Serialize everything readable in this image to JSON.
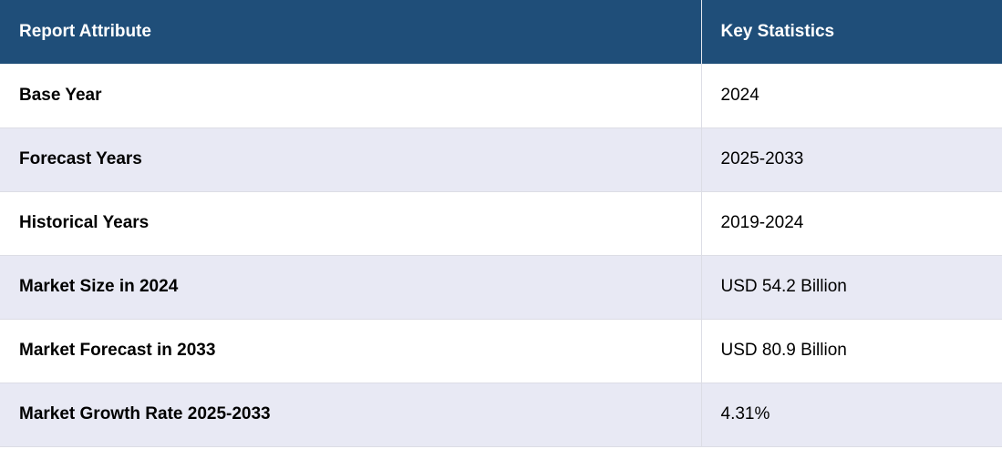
{
  "table": {
    "headers": [
      "Report Attribute",
      "Key Statistics"
    ],
    "rows": [
      {
        "attribute": "Base Year",
        "value": "2024"
      },
      {
        "attribute": "Forecast Years",
        "value": "2025-2033"
      },
      {
        "attribute": "Historical Years",
        "value": "2019-2024"
      },
      {
        "attribute": "Market Size in 2024",
        "value": "USD 54.2 Billion"
      },
      {
        "attribute": "Market Forecast in 2033",
        "value": "USD 80.9 Billion"
      },
      {
        "attribute": "Market Growth Rate 2025-2033",
        "value": "4.31%"
      }
    ],
    "colors": {
      "header_bg": "#1f4e79",
      "header_text": "#ffffff",
      "stripe_bg": "#e8e9f4",
      "row_bg": "#ffffff"
    }
  }
}
